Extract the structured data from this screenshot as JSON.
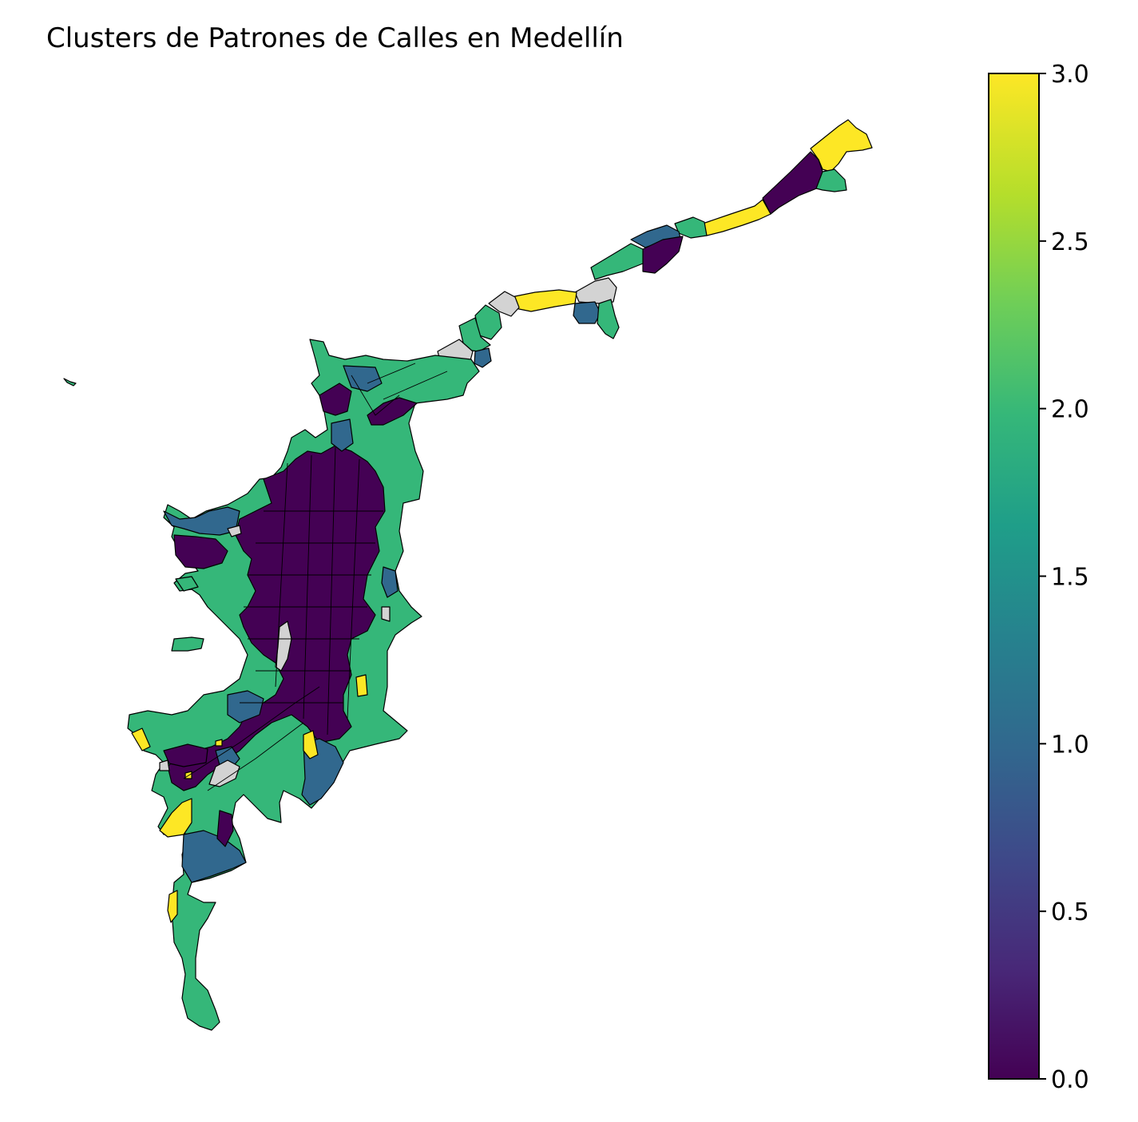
{
  "title": "Clusters de Patrones de Calles en Medellín",
  "colorbar": {
    "colormap": "viridis",
    "min": 0.0,
    "max": 3.0,
    "ticks": [
      "0.0",
      "0.5",
      "1.0",
      "1.5",
      "2.0",
      "2.5",
      "3.0"
    ]
  },
  "palette": {
    "cluster_0": "#440154",
    "cluster_1": "#31688e",
    "cluster_2": "#35b779",
    "cluster_3": "#fde725",
    "no_data": "#d3d3d3",
    "edge": "#000000"
  }
}
